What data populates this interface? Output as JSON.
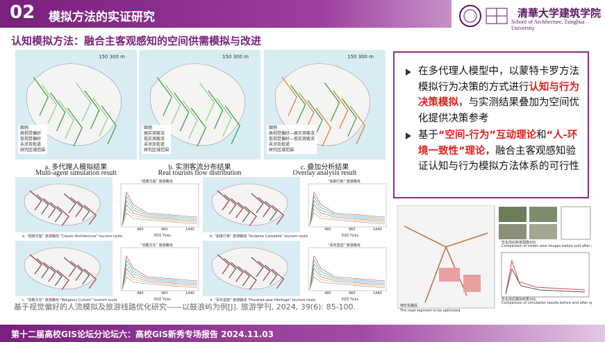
{
  "header": {
    "number": "02",
    "title": "模拟方法的实证研究",
    "logo_cn": "清華大学建筑学院",
    "logo_en": "School of Architecture, Tsinghua University"
  },
  "subtitle": "认知模拟方法：融合主客观感知的空间供需模拟与改进",
  "maps": [
    {
      "label_cn": "a. 多代理人模拟结果",
      "label_en": "Multi-agent simulation result",
      "scale": "150 300 m",
      "legend_title": "图例",
      "legend": [
        "高视觉偏好",
        "低视觉偏好",
        "未涉及街道",
        "研究区域范围"
      ]
    },
    {
      "label_cn": "b. 实测客流分布结果",
      "label_en": "Real tourists flow distribution",
      "scale": "150 300 m",
      "legend_title": "图例",
      "legend": [
        "高实测客流",
        "低实测客流",
        "未涉及街道",
        "研究区域范围"
      ]
    },
    {
      "label_cn": "c. 叠加分析结果",
      "label_en": "Overlay analysis result",
      "scale": "150 300 m",
      "legend_title": "图例",
      "legend": [
        "高视觉偏好—高实测客流",
        "低视觉偏好—低实测客流",
        "未涉及街道",
        "研究区域范围"
      ]
    }
  ],
  "bullets": [
    [
      {
        "text": "在多代理人模型中，以蒙特卡罗方法模拟行为决策的方式进行"
      },
      {
        "text": "认知与行为决策模拟",
        "emphasis": true
      },
      {
        "text": "，与实测结果叠加为空间优化提供决策参考"
      }
    ],
    [
      {
        "text": "基于"
      },
      {
        "text": "“空间-行为”互动理论",
        "emphasis": true
      },
      {
        "text": "和"
      },
      {
        "text": "“人-环境一致性”理论",
        "emphasis": true
      },
      {
        "text": "，融合主客观感知验证认知与行为模拟方法体系的可行性"
      }
    ]
  ],
  "route_panels": [
    {
      "caption": "a. “经典华屋” 旅游路线 \"Classic Architecture\" tourism route",
      "chart_title": "“经典华屋” 旅游路线",
      "x_label": "时间 Ticks",
      "x_ticks": [
        "480",
        "960",
        "1440"
      ]
    },
    {
      "caption": "b. “如歌行板” 旅游路线 \"Andante Cantabile\" tourism route",
      "chart_title": "“如歌行板” 旅游路线",
      "x_label": "时间 Ticks",
      "x_ticks": [
        "480",
        "960",
        "1440"
      ]
    },
    {
      "caption": "c. “宗教文化” 旅游路线 \"Religious Culture\" tourism route",
      "chart_title": "“宗教文化” 旅游路线",
      "x_label": "时间 Ticks",
      "x_ticks": [
        "480",
        "960",
        "1440"
      ]
    },
    {
      "caption": "d. “百年遗迹” 旅游路线 \"Hundred-year Heritage\" tourism route",
      "chart_title": "“百年遗迹” 旅游路线",
      "x_label": "时间 Ticks",
      "x_ticks": [
        "480",
        "960",
        "1440"
      ]
    }
  ],
  "optimization_figure": {
    "road_label_cn": "待优化路段",
    "road_label_en": "The road segment to be optimized",
    "compare_cn": "优化前后街景图像对比",
    "compare_en": "Comparison of street view images before and after optimization",
    "sim_cn": "优化前后模拟结果对比",
    "sim_en": "Comparison of simulation results before and after optimization"
  },
  "citation": "基于视觉偏好的人流模拟及旅游线路优化研究——以鼓浪屿为例[J]. 旅游学刊, 2024, 39(6): 85-100.",
  "footer": "第十二届高校GIS论坛分论坛六：高校GIS新秀专场报告  2024.11.03"
}
